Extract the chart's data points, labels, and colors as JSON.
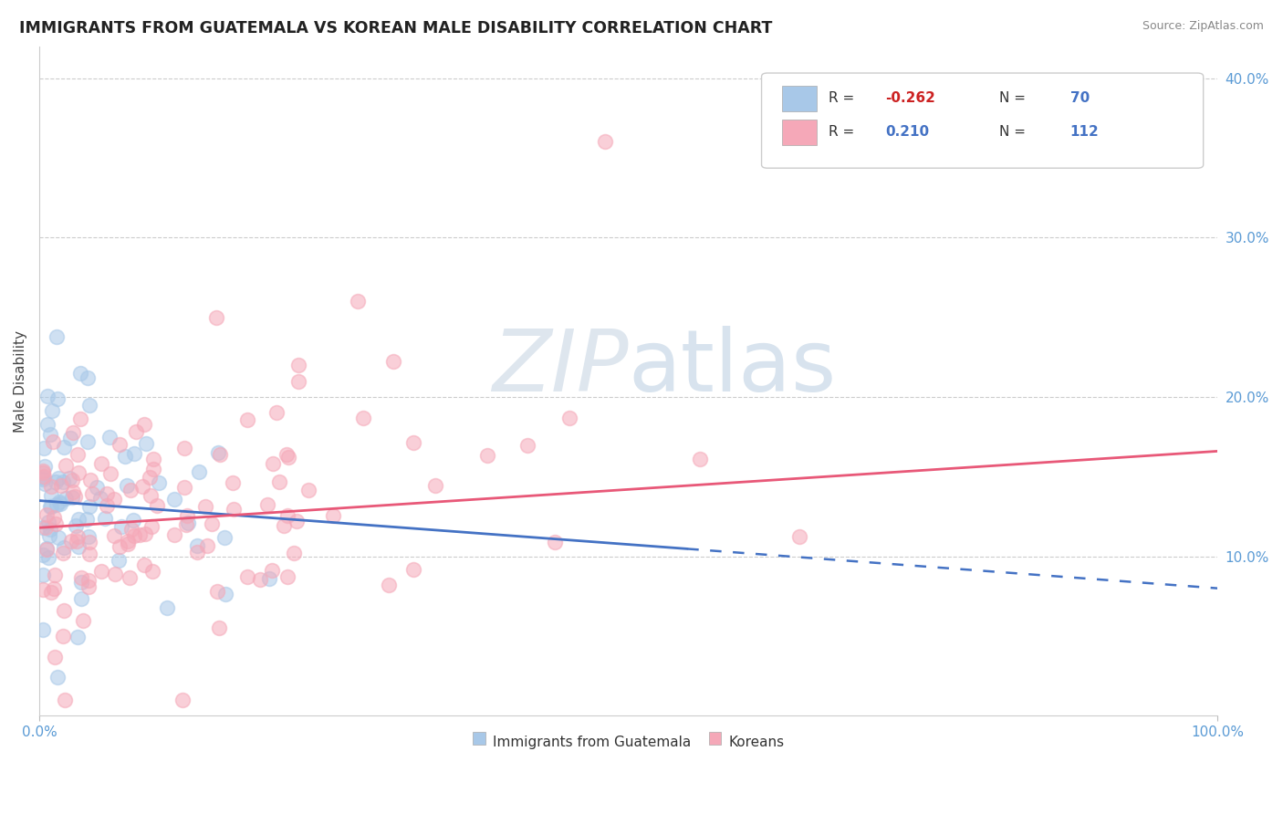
{
  "title": "IMMIGRANTS FROM GUATEMALA VS KOREAN MALE DISABILITY CORRELATION CHART",
  "source_text": "Source: ZipAtlas.com",
  "ylabel": "Male Disability",
  "xlim": [
    0,
    100
  ],
  "ylim": [
    0,
    42
  ],
  "legend1_r": "-0.262",
  "legend1_n": "70",
  "legend2_r": "0.210",
  "legend2_n": "112",
  "blue_color": "#a8c8e8",
  "pink_color": "#f5a8b8",
  "blue_line_color": "#4472c4",
  "pink_line_color": "#e85878",
  "watermark_color": "#d0dce8",
  "ytick_pcts": [
    "10.0%",
    "20.0%",
    "30.0%",
    "40.0%"
  ],
  "ytick_vals": [
    10,
    20,
    30,
    40
  ],
  "blue_trend_intercept": 13.5,
  "blue_trend_slope": -0.055,
  "blue_solid_end": 55,
  "pink_trend_intercept": 11.8,
  "pink_trend_slope": 0.048
}
